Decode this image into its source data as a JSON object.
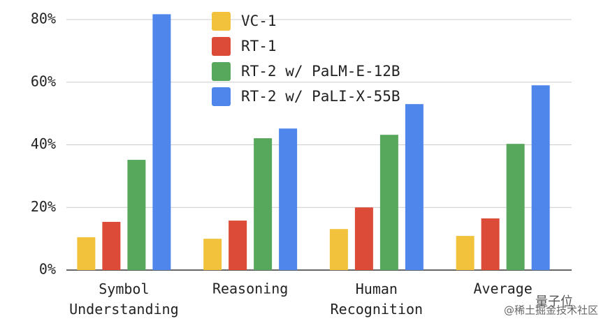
{
  "chart_data": {
    "type": "bar",
    "categories": [
      "Symbol Understanding",
      "Reasoning",
      "Human Recognition",
      "Average"
    ],
    "series": [
      {
        "name": "VC-1",
        "color": "#f2c23c",
        "values": [
          10.5,
          10.0,
          13.1,
          10.9
        ]
      },
      {
        "name": "RT-1",
        "color": "#dc4a38",
        "values": [
          15.4,
          15.8,
          20.0,
          16.5
        ]
      },
      {
        "name": "RT-2 w/ PaLM-E-12B",
        "color": "#57a85c",
        "values": [
          35.2,
          42.1,
          43.2,
          40.3
        ]
      },
      {
        "name": "RT-2 w/ PaLI-X-55B",
        "color": "#4f86ec",
        "values": [
          81.7,
          45.2,
          53.0,
          59.0
        ]
      }
    ],
    "ylim": [
      0,
      80
    ],
    "yticks": [
      {
        "value": 0,
        "label": "0%"
      },
      {
        "value": 20,
        "label": "20%"
      },
      {
        "value": 40,
        "label": "40%"
      },
      {
        "value": 60,
        "label": "60%"
      },
      {
        "value": 80,
        "label": "80%"
      }
    ],
    "grid": true,
    "legend": "top",
    "annotations": [
      "量子位",
      "@稀土掘金技术社区"
    ]
  }
}
